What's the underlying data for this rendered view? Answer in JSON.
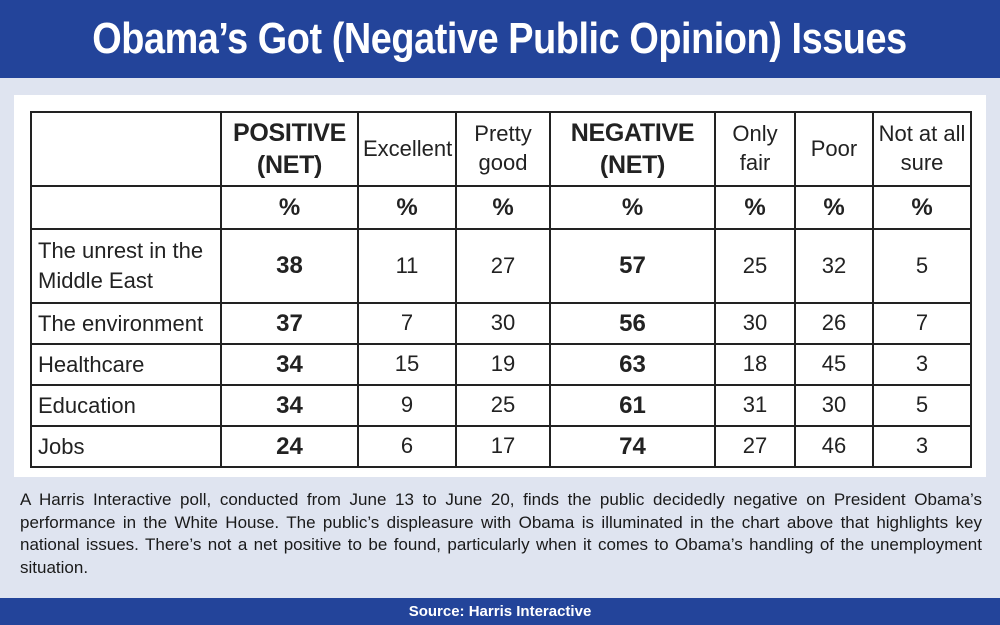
{
  "title": "Obama’s Got (Negative Public Opinion) Issues",
  "chart_data": {
    "type": "table",
    "columns": [
      {
        "label": "POSITIVE (NET)",
        "unit": "%"
      },
      {
        "label": "Excellent",
        "unit": "%"
      },
      {
        "label": "Pretty good",
        "unit": "%"
      },
      {
        "label": "NEGATIVE (NET)",
        "unit": "%"
      },
      {
        "label": "Only fair",
        "unit": "%"
      },
      {
        "label": "Poor",
        "unit": "%"
      },
      {
        "label": "Not at all sure",
        "unit": "%"
      }
    ],
    "rows": [
      {
        "category": "The unrest in the Middle East",
        "values": [
          38,
          11,
          27,
          57,
          25,
          32,
          5
        ]
      },
      {
        "category": "The environment",
        "values": [
          37,
          7,
          30,
          56,
          30,
          26,
          7
        ]
      },
      {
        "category": "Healthcare",
        "values": [
          34,
          15,
          19,
          63,
          18,
          45,
          3
        ]
      },
      {
        "category": "Education",
        "values": [
          34,
          9,
          25,
          61,
          31,
          30,
          5
        ]
      },
      {
        "category": "Jobs",
        "values": [
          24,
          6,
          17,
          74,
          27,
          46,
          3
        ]
      }
    ]
  },
  "caption": "A Harris Interactive poll, conducted from June 13 to June 20, finds the public decidedly negative on President Obama’s performance in the White House. The public’s displeasure with Obama is illuminated in the chart above that highlights key national issues. There’s not a net positive to be found, particularly when it comes to Obama’s handling of the unemployment situation.",
  "source": "Source: Harris Interactive",
  "colors": {
    "banner": "#23449a",
    "background": "#dfe4f0",
    "panel": "#ffffff",
    "border": "#222222"
  }
}
